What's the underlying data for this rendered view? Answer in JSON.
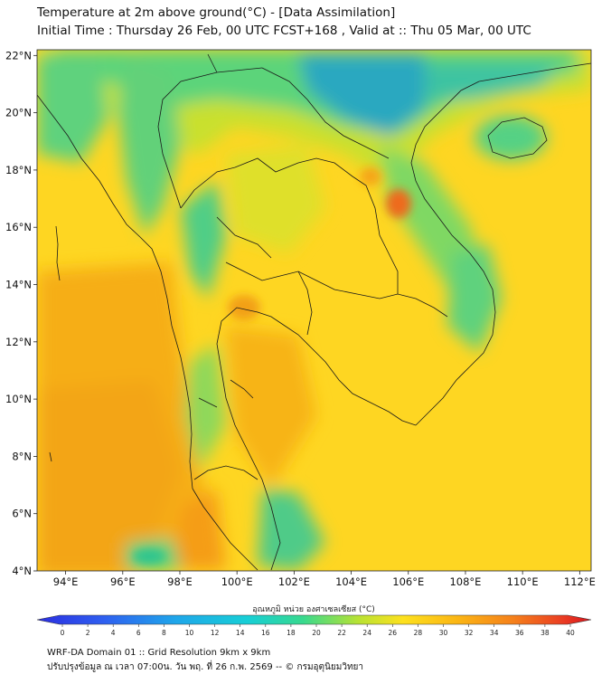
{
  "header": {
    "title": "Temperature at 2m above ground(°C) - [Data Assimilation]",
    "subtitle": "Initial Time : Thursday 26 Feb, 00 UTC FCST+168 , Valid at :: Thu 05 Mar, 00 UTC"
  },
  "map": {
    "lat_ticks": [
      "4°N",
      "6°N",
      "8°N",
      "10°N",
      "12°N",
      "14°N",
      "16°N",
      "18°N",
      "20°N",
      "22°N"
    ],
    "lon_ticks": [
      "94°E",
      "96°E",
      "98°E",
      "100°E",
      "102°E",
      "104°E",
      "106°E",
      "108°E",
      "110°E",
      "112°E"
    ],
    "lat_range": [
      4,
      22.2
    ],
    "lon_range": [
      93,
      112.4
    ],
    "colors": {
      "cold": "#1f9fc4",
      "cool": "#46cf8a",
      "mild": "#c8de2e",
      "warm": "#fed622",
      "hot": "#f6a514",
      "very_hot": "#ee6a1c"
    }
  },
  "colorbar": {
    "label": "อุณหภูมิ หน่วย องศาเซลเซียส (°C)",
    "ticks": [
      "0",
      "2",
      "4",
      "6",
      "8",
      "10",
      "12",
      "14",
      "16",
      "18",
      "20",
      "22",
      "24",
      "26",
      "28",
      "30",
      "32",
      "34",
      "36",
      "38",
      "40"
    ]
  },
  "footer": {
    "line1": "WRF-DA Domain 01 :: Grid Resolution 9km x 9km",
    "line2": "ปรับปรุงข้อมูล ณ เวลา 07:00น. วัน พฤ. ที่ 26 ก.พ. 2569 -- © กรมอุตุนิยมวิทยา"
  }
}
